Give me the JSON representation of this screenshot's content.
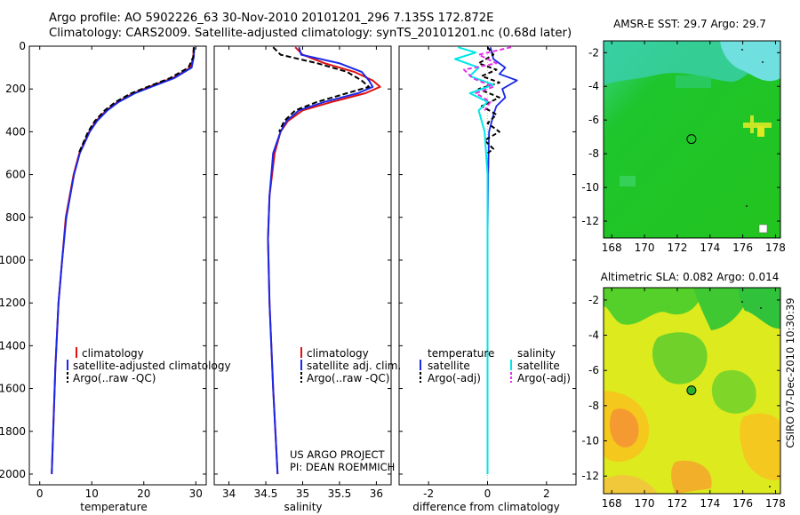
{
  "header": {
    "line1": "Argo profile: AO 5902226_63 30-Nov-2010 20101201_296 7.135S 172.872E",
    "line2": "Climatology: CARS2009. Satellite-adjusted climatology: synTS_20101201.nc (0.68d later)"
  },
  "colors": {
    "climatology": "#e01010",
    "satellite": "#1a28e8",
    "argo": "#000000",
    "sat_salt": "#00e6e6",
    "argo_salt": "#e830e8"
  },
  "side_label": "CSIRO 07-Dec-2010 10:30:39",
  "project": {
    "line1": "US ARGO PROJECT",
    "line2": "PI: DEAN ROEMMICH"
  },
  "chart_data": [
    {
      "id": "temperature",
      "type": "line",
      "xlabel": "temperature",
      "xlim": [
        -2,
        32
      ],
      "xticks": [
        "0",
        "10",
        "20",
        "30"
      ],
      "ylim": [
        0,
        2050
      ],
      "yticks": [
        "0",
        "200",
        "400",
        "600",
        "800",
        "1000",
        "1200",
        "1400",
        "1600",
        "1800",
        "2000"
      ],
      "legend": [
        "climatology",
        "satellite-adjusted climatology",
        "Argo(..raw -QC)"
      ],
      "series": [
        {
          "name": "climatology",
          "depth": [
            5,
            50,
            100,
            150,
            180,
            220,
            260,
            300,
            350,
            400,
            500,
            600,
            800,
            1000,
            1200,
            1500,
            2000
          ],
          "values": [
            29.6,
            29.5,
            29.0,
            25.5,
            22.0,
            18.0,
            15.0,
            12.8,
            10.8,
            9.5,
            7.6,
            6.5,
            5.0,
            4.3,
            3.6,
            3.0,
            2.3
          ]
        },
        {
          "name": "satellite",
          "depth": [
            5,
            50,
            100,
            150,
            180,
            220,
            260,
            300,
            350,
            400,
            500,
            600,
            800,
            1000,
            1200,
            1500,
            2000
          ],
          "values": [
            29.7,
            29.6,
            29.2,
            25.8,
            22.5,
            18.3,
            15.2,
            13.0,
            11.0,
            9.6,
            7.7,
            6.6,
            5.1,
            4.3,
            3.6,
            3.0,
            2.3
          ]
        },
        {
          "name": "argo",
          "depth": [
            5,
            50,
            100,
            150,
            180,
            220,
            260,
            300,
            350,
            400,
            500
          ],
          "values": [
            29.6,
            29.5,
            28.6,
            25.0,
            21.8,
            17.6,
            14.6,
            12.5,
            10.6,
            9.3,
            7.5
          ]
        }
      ]
    },
    {
      "id": "salinity",
      "type": "line",
      "xlabel": "salinity",
      "xlim": [
        33.8,
        36.2
      ],
      "xticks": [
        "34",
        "34.5",
        "35",
        "35.5",
        "36"
      ],
      "ylim": [
        0,
        2050
      ],
      "legend": [
        "climatology",
        "satellite adj. clim.",
        "Argo(..raw -QC)"
      ],
      "series": [
        {
          "name": "climatology",
          "depth": [
            5,
            40,
            80,
            120,
            160,
            190,
            220,
            260,
            300,
            350,
            400,
            500,
            700,
            900,
            1200,
            1600,
            2000
          ],
          "values": [
            34.9,
            35.0,
            35.3,
            35.7,
            35.95,
            36.05,
            35.85,
            35.4,
            35.0,
            34.8,
            34.7,
            34.62,
            34.55,
            34.53,
            34.55,
            34.6,
            34.66
          ]
        },
        {
          "name": "satellite",
          "depth": [
            5,
            40,
            80,
            120,
            160,
            190,
            220,
            260,
            300,
            350,
            400,
            500,
            700,
            900,
            1200,
            1600,
            2000
          ],
          "values": [
            34.95,
            34.98,
            35.5,
            35.8,
            35.9,
            35.95,
            35.75,
            35.3,
            34.95,
            34.78,
            34.7,
            34.6,
            34.55,
            34.53,
            34.55,
            34.6,
            34.66
          ]
        },
        {
          "name": "argo",
          "depth": [
            5,
            40,
            80,
            120,
            160,
            190,
            220,
            260,
            300,
            350,
            400
          ],
          "values": [
            34.6,
            34.7,
            35.2,
            35.6,
            35.8,
            35.9,
            35.6,
            35.2,
            34.9,
            34.75,
            34.68
          ]
        }
      ]
    },
    {
      "id": "difference",
      "type": "line",
      "xlabel": "difference from climatology",
      "xlim": [
        -3,
        3
      ],
      "xticks": [
        "-2",
        "0",
        "2"
      ],
      "ylim": [
        0,
        2050
      ],
      "legend_t": {
        "title": "temperature",
        "items": [
          "satellite",
          "Argo(-adj)"
        ]
      },
      "legend_s": {
        "title": "salinity",
        "items": [
          "satellite",
          "Argo(-adj)"
        ]
      },
      "series": [
        {
          "name": "temp_satellite",
          "depth": [
            5,
            60,
            100,
            130,
            160,
            200,
            240,
            280,
            320,
            400,
            600,
            900,
            1400,
            2000
          ],
          "values": [
            0.1,
            0.2,
            0.6,
            0.4,
            1.0,
            0.5,
            0.6,
            0.3,
            0.2,
            0.05,
            0.02,
            0.0,
            0.0,
            0.0
          ]
        },
        {
          "name": "temp_argo",
          "depth": [
            5,
            40,
            80,
            110,
            140,
            170,
            200,
            240,
            280,
            320,
            360,
            400,
            440,
            480,
            500
          ],
          "values": [
            0.0,
            0.2,
            -0.3,
            0.3,
            -0.2,
            0.4,
            -0.3,
            0.4,
            -0.2,
            0.3,
            0.0,
            0.4,
            -0.1,
            0.2,
            0.0
          ]
        },
        {
          "name": "salt_satellite",
          "depth": [
            5,
            30,
            60,
            100,
            140,
            180,
            220,
            260,
            300,
            400,
            600,
            900,
            1400,
            2000
          ],
          "values": [
            -1.0,
            -0.4,
            -1.1,
            -0.3,
            -0.6,
            0.2,
            -0.6,
            0.0,
            -0.3,
            -0.1,
            0.0,
            0.0,
            0.0,
            0.0
          ]
        },
        {
          "name": "salt_argo",
          "depth": [
            5,
            40,
            80,
            110,
            150,
            190,
            220,
            260,
            300
          ],
          "values": [
            0.8,
            -0.3,
            0.3,
            -0.8,
            -0.5,
            0.2,
            -0.4,
            0.1,
            -0.1
          ]
        }
      ]
    },
    {
      "id": "sst_map",
      "type": "heatmap",
      "title": "AMSR-E SST: 29.7  Argo: 29.7",
      "xticks": [
        "168",
        "170",
        "172",
        "174",
        "176",
        "178"
      ],
      "yticks": [
        "-2",
        "-4",
        "-6",
        "-8",
        "-10",
        "-12"
      ],
      "xlim": [
        167.5,
        178.3
      ],
      "ylim": [
        -13.0,
        -1.3
      ],
      "argo_point": [
        172.87,
        -7.13
      ]
    },
    {
      "id": "sla_map",
      "type": "heatmap",
      "title": "Altimetric SLA: 0.082  Argo: 0.014",
      "xticks": [
        "168",
        "170",
        "172",
        "174",
        "176",
        "178"
      ],
      "yticks": [
        "-2",
        "-4",
        "-6",
        "-8",
        "-10",
        "-12"
      ],
      "xlim": [
        167.5,
        178.3
      ],
      "ylim": [
        -13.0,
        -1.3
      ],
      "argo_point": [
        172.87,
        -7.13
      ]
    }
  ]
}
